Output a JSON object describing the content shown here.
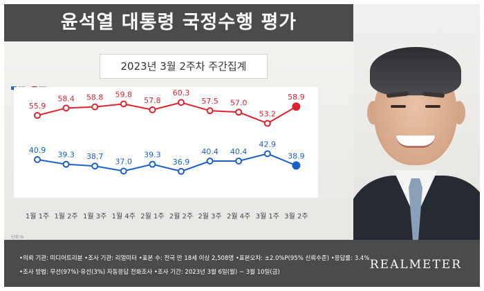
{
  "header": {
    "title": "윤석열 대통령 국정수행 평가"
  },
  "subtitle": "2023년 3월 2주차 주간집계",
  "unit_label": "단위:%",
  "colors": {
    "approve": "#1a5fc9",
    "disapprove": "#e0222e",
    "title_bg": "#4b4b4b"
  },
  "chart_data": {
    "type": "line",
    "title": "윤석열 대통령 국정수행 평가",
    "subtitle": "2023년 3월 2주차 주간집계",
    "categories": [
      "1월 1주",
      "1월 2주",
      "1월 3주",
      "1월 4주",
      "2월 1주",
      "2월 2주",
      "2월 3주",
      "2월 4주",
      "3월 1주",
      "3월 2주"
    ],
    "series": [
      {
        "name": "부정",
        "color": "#e0222e",
        "values": [
          55.9,
          58.4,
          58.8,
          59.8,
          57.8,
          60.3,
          57.5,
          57.0,
          53.2,
          58.9
        ]
      },
      {
        "name": "긍정",
        "color": "#1a5fc9",
        "values": [
          40.9,
          39.3,
          38.7,
          37.0,
          39.3,
          36.9,
          40.4,
          40.4,
          42.9,
          38.9
        ]
      }
    ],
    "legend": [
      "긍정",
      "부정"
    ],
    "legend_position": "top-left",
    "grid": false,
    "unit": "단위:%"
  },
  "footer": {
    "line1": "•의뢰 기관: 미디어트리뷴 •조사 기관: 리얼미터 •표본 수: 전국 만 18세 이상 2,508명 •표본오차: ±2.0%P(95% 신뢰수준) •응답률: 3.4%",
    "line2": "•조사 방법: 무선(97%)·유선(3%) 자동응답 전화조사 •조사 기간: 2023년 3월 6일(월) ~ 3월 10일(금)",
    "brand": "REALMETER"
  }
}
